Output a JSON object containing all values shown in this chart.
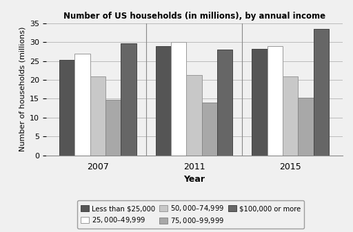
{
  "title": "Number of US households (in millions), by annual income",
  "xlabel": "Year",
  "ylabel": "Number of households (millions)",
  "years": [
    "2007",
    "2011",
    "2015"
  ],
  "categories": [
    "Less than $25,000",
    "$25,000–$49,999",
    "$50,000–$74,999",
    "$75,000–$99,999",
    "$100,000 or more"
  ],
  "values": [
    [
      25.3,
      27.0,
      21.0,
      14.7,
      29.7
    ],
    [
      29.0,
      30.0,
      21.2,
      14.0,
      28.0
    ],
    [
      28.2,
      29.0,
      21.0,
      15.3,
      33.5
    ]
  ],
  "colors": [
    "#555555",
    "#ffffff",
    "#c8c8c8",
    "#a8a8a8",
    "#666666"
  ],
  "bar_edge_colors": [
    "#444444",
    "#999999",
    "#999999",
    "#888888",
    "#444444"
  ],
  "ylim": [
    0,
    35
  ],
  "yticks": [
    0,
    5,
    10,
    15,
    20,
    25,
    30,
    35
  ],
  "background_color": "#f0f0f0",
  "legend_ncol": 3
}
